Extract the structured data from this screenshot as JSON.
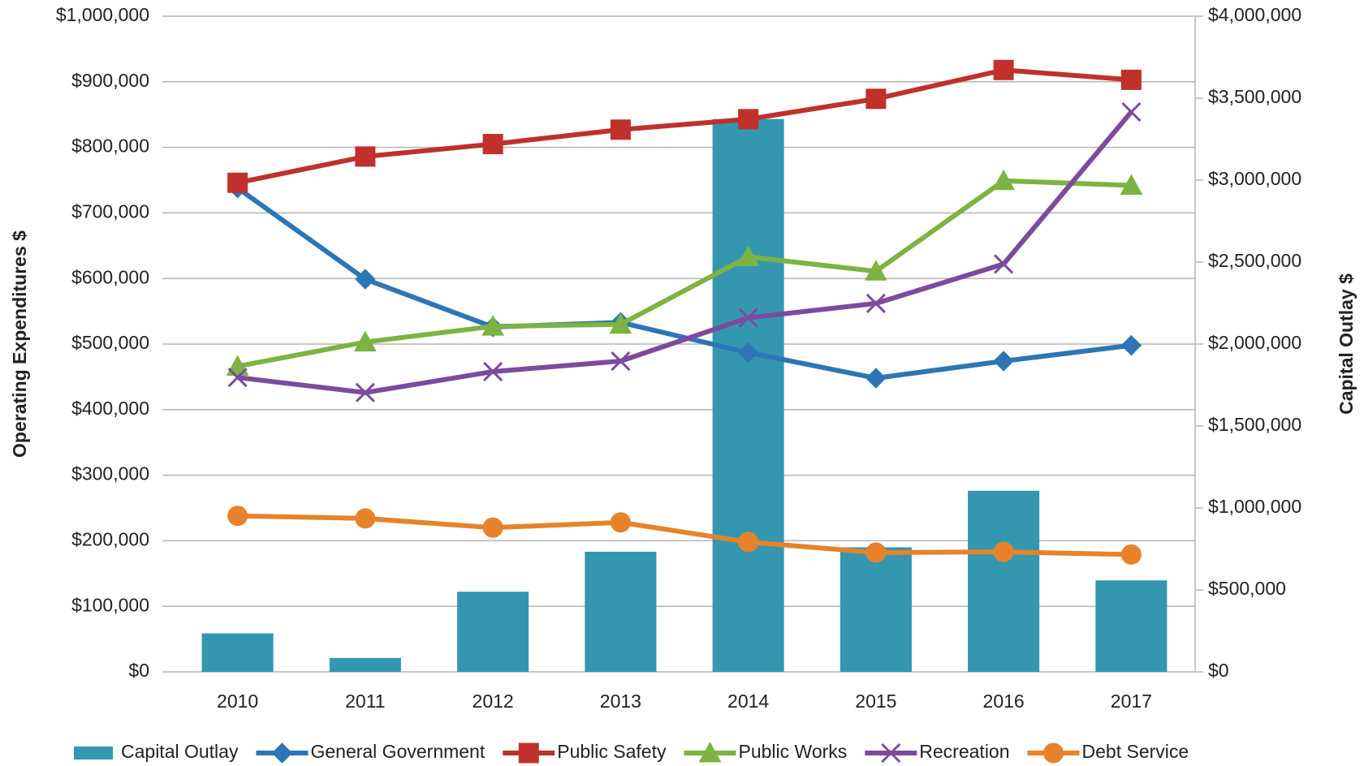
{
  "chart_data": {
    "type": "combo",
    "categories": [
      "2010",
      "2011",
      "2012",
      "2013",
      "2014",
      "2015",
      "2016",
      "2017"
    ],
    "ylabel": "Operating Expenditures $",
    "y2label": "Capital Outlay $",
    "ylim": [
      0,
      1000000
    ],
    "yticks": [
      {
        "value": 0,
        "label": "$0"
      },
      {
        "value": 100000,
        "label": "$100,000"
      },
      {
        "value": 200000,
        "label": "$200,000"
      },
      {
        "value": 300000,
        "label": "$300,000"
      },
      {
        "value": 400000,
        "label": "$400,000"
      },
      {
        "value": 500000,
        "label": "$500,000"
      },
      {
        "value": 600000,
        "label": "$600,000"
      },
      {
        "value": 700000,
        "label": "$700,000"
      },
      {
        "value": 800000,
        "label": "$800,000"
      },
      {
        "value": 900000,
        "label": "$900,000"
      },
      {
        "value": 1000000,
        "label": "$1,000,000"
      }
    ],
    "y2lim": [
      0,
      4000000
    ],
    "y2ticks": [
      {
        "value": 0,
        "label": "$0"
      },
      {
        "value": 500000,
        "label": "$500,000"
      },
      {
        "value": 1000000,
        "label": "$1,000,000"
      },
      {
        "value": 1500000,
        "label": "$1,500,000"
      },
      {
        "value": 2000000,
        "label": "$2,000,000"
      },
      {
        "value": 2500000,
        "label": "$2,500,000"
      },
      {
        "value": 3000000,
        "label": "$3,000,000"
      },
      {
        "value": 3500000,
        "label": "$3,500,000"
      },
      {
        "value": 4000000,
        "label": "$4,000,000"
      }
    ],
    "grid": true,
    "legend": "bottom",
    "series": [
      {
        "name": "Capital Outlay",
        "type": "bar",
        "axis": "y2",
        "color": "#3497b0",
        "values": [
          235000,
          85000,
          489000,
          733000,
          3373000,
          760000,
          1105000,
          558000
        ]
      },
      {
        "name": "General Government",
        "type": "line",
        "marker": "diamond",
        "color": "#2e75b6",
        "values": [
          738000,
          599000,
          526000,
          533000,
          487000,
          448000,
          474000,
          498000
        ]
      },
      {
        "name": "Public Safety",
        "type": "line",
        "marker": "square",
        "color": "#c0312b",
        "values": [
          746000,
          786000,
          805000,
          827000,
          843000,
          874000,
          918000,
          903000
        ]
      },
      {
        "name": "Public Works",
        "type": "line",
        "marker": "triangle",
        "color": "#7cb342",
        "values": [
          466000,
          503000,
          527000,
          530000,
          633000,
          611000,
          749000,
          742000
        ]
      },
      {
        "name": "Recreation",
        "type": "line",
        "marker": "x",
        "color": "#7b4b9e",
        "values": [
          449000,
          426000,
          458000,
          474000,
          540000,
          562000,
          622000,
          854000
        ]
      },
      {
        "name": "Debt Service",
        "type": "line",
        "marker": "circle",
        "color": "#e8822a",
        "values": [
          238000,
          234000,
          220000,
          228000,
          198000,
          182000,
          183000,
          179000
        ]
      }
    ]
  }
}
